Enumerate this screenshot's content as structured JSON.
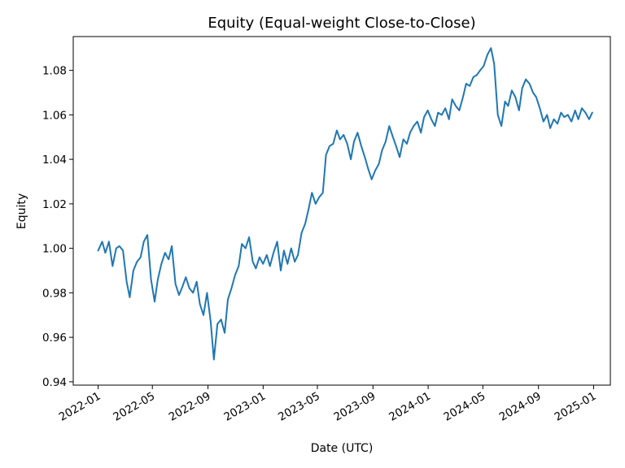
{
  "chart_data": {
    "type": "line",
    "title": "Equity (Equal-weight Close-to-Close)",
    "xlabel": "Date (UTC)",
    "ylabel": "Equity",
    "xlim": [
      "2021-11-07",
      "2025-02-07"
    ],
    "ylim": [
      0.9385,
      1.0952
    ],
    "grid": false,
    "legend": "none",
    "line_color": "#1f77b4",
    "x_ticks": [
      "2022-01-01",
      "2022-05-01",
      "2022-09-01",
      "2023-01-01",
      "2023-05-01",
      "2023-09-01",
      "2024-01-01",
      "2024-05-01",
      "2024-09-01",
      "2025-01-01"
    ],
    "x_tick_labels": [
      "2022-01",
      "2022-05",
      "2022-09",
      "2023-01",
      "2023-05",
      "2023-09",
      "2024-01",
      "2024-05",
      "2024-09",
      "2025-01"
    ],
    "y_ticks": [
      0.94,
      0.96,
      0.98,
      1.0,
      1.02,
      1.04,
      1.06,
      1.08
    ],
    "y_tick_labels": [
      "0.94",
      "0.96",
      "0.98",
      "1.00",
      "1.02",
      "1.04",
      "1.06",
      "1.08"
    ],
    "series": [
      {
        "x": [
          "2022-01-01",
          "2022-01-10",
          "2022-01-17",
          "2022-01-25",
          "2022-02-02",
          "2022-02-10",
          "2022-02-17",
          "2022-02-25",
          "2022-03-05",
          "2022-03-12",
          "2022-03-20",
          "2022-03-28",
          "2022-04-05",
          "2022-04-12",
          "2022-04-20",
          "2022-04-28",
          "2022-05-06",
          "2022-05-13",
          "2022-05-21",
          "2022-05-29",
          "2022-06-06",
          "2022-06-13",
          "2022-06-21",
          "2022-06-29",
          "2022-07-07",
          "2022-07-14",
          "2022-07-22",
          "2022-07-30",
          "2022-08-07",
          "2022-08-14",
          "2022-08-22",
          "2022-08-30",
          "2022-09-07",
          "2022-09-14",
          "2022-09-22",
          "2022-09-30",
          "2022-10-08",
          "2022-10-15",
          "2022-10-23",
          "2022-10-31",
          "2022-11-08",
          "2022-11-15",
          "2022-11-23",
          "2022-12-01",
          "2022-12-09",
          "2022-12-16",
          "2022-12-24",
          "2023-01-01",
          "2023-01-09",
          "2023-01-16",
          "2023-01-24",
          "2023-02-01",
          "2023-02-09",
          "2023-02-16",
          "2023-02-24",
          "2023-03-04",
          "2023-03-12",
          "2023-03-19",
          "2023-03-27",
          "2023-04-04",
          "2023-04-12",
          "2023-04-19",
          "2023-04-27",
          "2023-05-05",
          "2023-05-13",
          "2023-05-20",
          "2023-05-28",
          "2023-06-05",
          "2023-06-13",
          "2023-06-20",
          "2023-06-28",
          "2023-07-06",
          "2023-07-14",
          "2023-07-21",
          "2023-07-29",
          "2023-08-06",
          "2023-08-14",
          "2023-08-21",
          "2023-08-29",
          "2023-09-06",
          "2023-09-14",
          "2023-09-21",
          "2023-09-29",
          "2023-10-07",
          "2023-10-15",
          "2023-10-22",
          "2023-10-30",
          "2023-11-07",
          "2023-11-15",
          "2023-11-22",
          "2023-11-30",
          "2023-12-08",
          "2023-12-16",
          "2023-12-23",
          "2023-12-31",
          "2024-01-08",
          "2024-01-16",
          "2024-01-23",
          "2024-01-31",
          "2024-02-08",
          "2024-02-16",
          "2024-02-23",
          "2024-03-02",
          "2024-03-10",
          "2024-03-18",
          "2024-03-25",
          "2024-04-02",
          "2024-04-10",
          "2024-04-18",
          "2024-04-25",
          "2024-05-03",
          "2024-05-11",
          "2024-05-19",
          "2024-05-26",
          "2024-06-03",
          "2024-06-11",
          "2024-06-19",
          "2024-06-26",
          "2024-07-04",
          "2024-07-12",
          "2024-07-20",
          "2024-07-27",
          "2024-08-04",
          "2024-08-12",
          "2024-08-20",
          "2024-08-27",
          "2024-09-04",
          "2024-09-12",
          "2024-09-20",
          "2024-09-27",
          "2024-10-05",
          "2024-10-13",
          "2024-10-21",
          "2024-10-28",
          "2024-11-05",
          "2024-11-13",
          "2024-11-21",
          "2024-11-28",
          "2024-12-06",
          "2024-12-14",
          "2024-12-22",
          "2024-12-29"
        ],
        "y": [
          0.999,
          1.003,
          0.998,
          1.003,
          0.992,
          1.0,
          1.001,
          0.999,
          0.985,
          0.978,
          0.99,
          0.994,
          0.996,
          1.003,
          1.006,
          0.986,
          0.976,
          0.986,
          0.993,
          0.998,
          0.995,
          1.001,
          0.984,
          0.979,
          0.983,
          0.987,
          0.982,
          0.98,
          0.985,
          0.975,
          0.97,
          0.98,
          0.967,
          0.95,
          0.966,
          0.968,
          0.962,
          0.977,
          0.982,
          0.988,
          0.992,
          1.002,
          1.0,
          1.005,
          0.994,
          0.991,
          0.996,
          0.993,
          0.997,
          0.992,
          0.998,
          1.003,
          0.99,
          0.999,
          0.993,
          1.0,
          0.994,
          0.997,
          1.007,
          1.011,
          1.018,
          1.025,
          1.02,
          1.023,
          1.025,
          1.042,
          1.046,
          1.047,
          1.053,
          1.049,
          1.051,
          1.047,
          1.04,
          1.048,
          1.052,
          1.046,
          1.041,
          1.036,
          1.031,
          1.035,
          1.038,
          1.044,
          1.048,
          1.055,
          1.05,
          1.046,
          1.041,
          1.049,
          1.047,
          1.052,
          1.055,
          1.057,
          1.052,
          1.059,
          1.062,
          1.058,
          1.055,
          1.061,
          1.06,
          1.063,
          1.058,
          1.067,
          1.064,
          1.062,
          1.068,
          1.074,
          1.073,
          1.077,
          1.078,
          1.08,
          1.082,
          1.087,
          1.09,
          1.083,
          1.06,
          1.055,
          1.066,
          1.064,
          1.071,
          1.068,
          1.062,
          1.072,
          1.076,
          1.074,
          1.07,
          1.068,
          1.063,
          1.057,
          1.06,
          1.054,
          1.058,
          1.056,
          1.061,
          1.059,
          1.06,
          1.057,
          1.062,
          1.058,
          1.063,
          1.061,
          1.058,
          1.061
        ]
      }
    ]
  }
}
